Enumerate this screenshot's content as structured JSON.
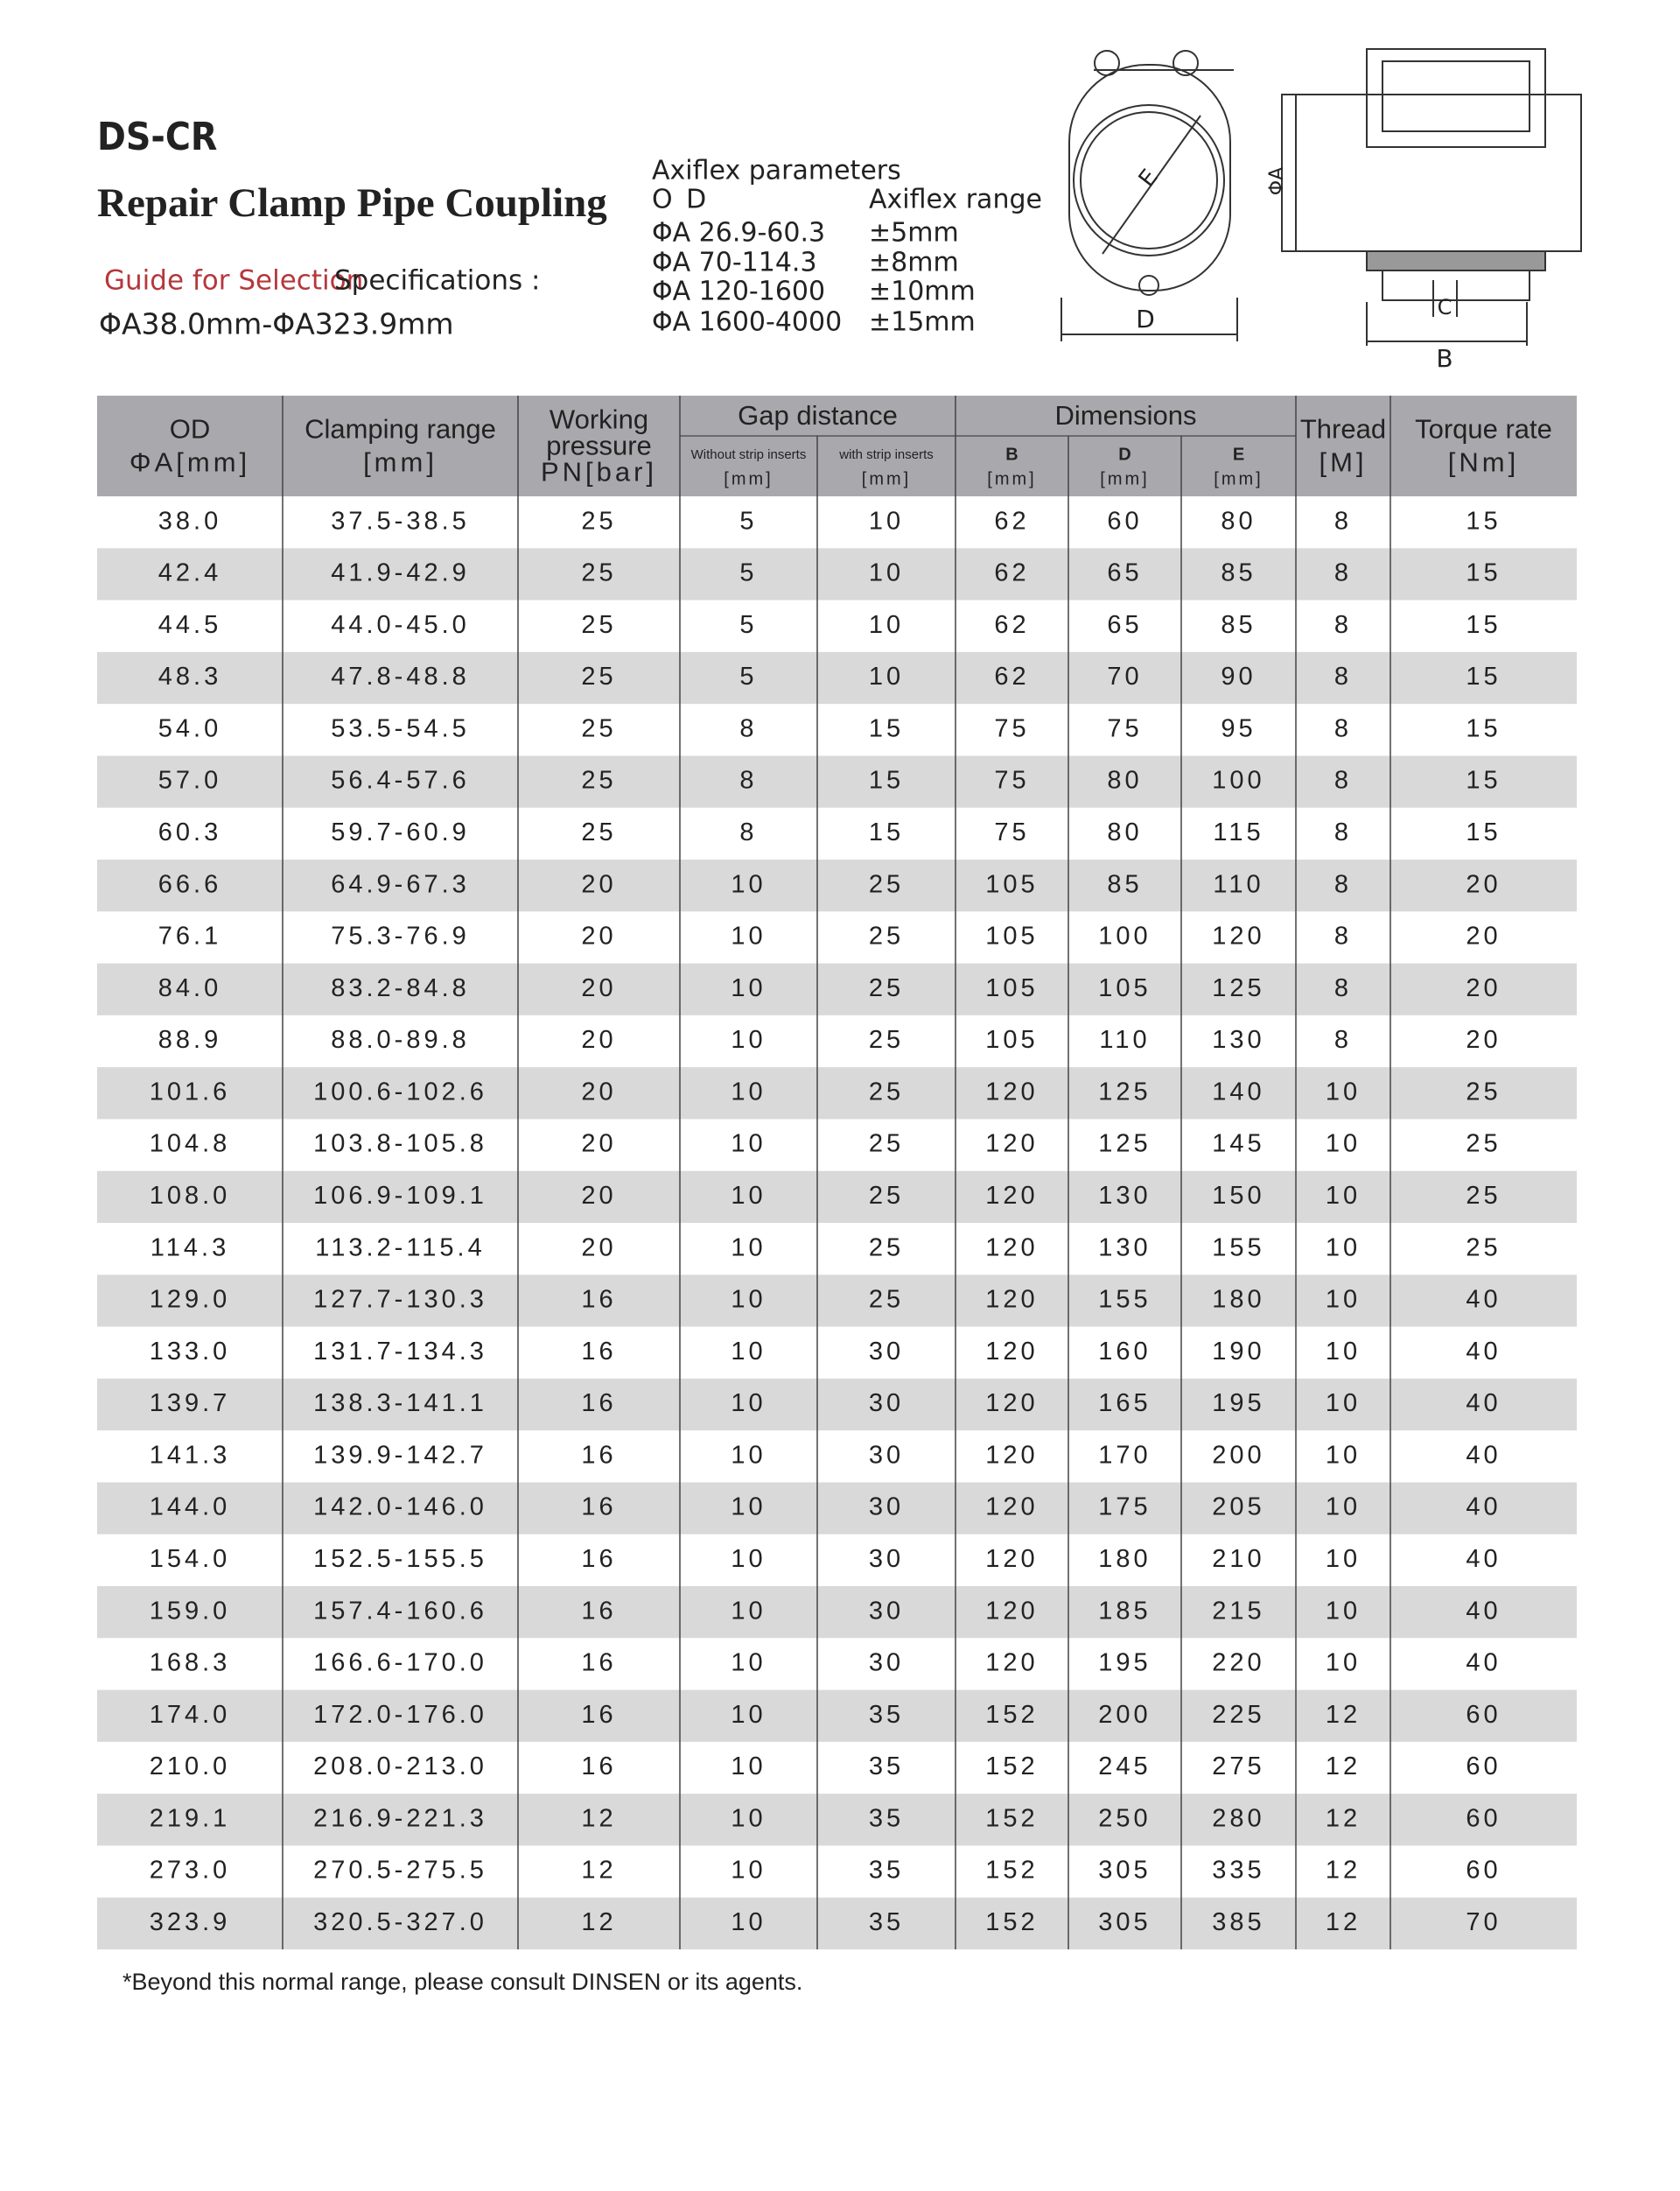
{
  "header": {
    "code": "DS-CR",
    "title": "Repair Clamp Pipe Coupling",
    "guide": "Guide for Selection",
    "specifications": "Specifications :",
    "range": "ΦA38.0mm-ΦA323.9mm"
  },
  "axiflex": {
    "title": "Axiflex parameters",
    "od_label": "O D",
    "range_label": "Axiflex range",
    "rows": [
      [
        "ΦA  26.9-60.3",
        "±5mm"
      ],
      [
        "ΦA  70-114.3",
        "±8mm"
      ],
      [
        "ΦA  120-1600",
        "±10mm"
      ],
      [
        "ΦA  1600-4000",
        "±15mm"
      ]
    ]
  },
  "diagram": {
    "e": "E",
    "d": "D",
    "phi_a": "ΦA",
    "c": "C",
    "b": "B"
  },
  "table": {
    "header": [
      [
        "OD",
        "ΦA[mm]"
      ],
      [
        "Clamping range",
        "[mm]"
      ],
      [
        "Working",
        "pressure",
        "PN[bar]"
      ],
      [
        "Without strip inserts",
        "[mm]"
      ],
      [
        "with strip inserts",
        "[mm]"
      ],
      [
        "B",
        "[mm]"
      ],
      [
        "D",
        "[mm]"
      ],
      [
        "E",
        "[mm]"
      ],
      [
        "Thread",
        "[M]"
      ],
      [
        "Torque rate",
        "[Nm]"
      ]
    ],
    "groups": [
      "Gap distance",
      "Dimensions"
    ],
    "rows": [
      [
        "38.0",
        "37.5-38.5",
        "25",
        "5",
        "10",
        "62",
        "60",
        "80",
        "8",
        "15"
      ],
      [
        "42.4",
        "41.9-42.9",
        "25",
        "5",
        "10",
        "62",
        "65",
        "85",
        "8",
        "15"
      ],
      [
        "44.5",
        "44.0-45.0",
        "25",
        "5",
        "10",
        "62",
        "65",
        "85",
        "8",
        "15"
      ],
      [
        "48.3",
        "47.8-48.8",
        "25",
        "5",
        "10",
        "62",
        "70",
        "90",
        "8",
        "15"
      ],
      [
        "54.0",
        "53.5-54.5",
        "25",
        "8",
        "15",
        "75",
        "75",
        "95",
        "8",
        "15"
      ],
      [
        "57.0",
        "56.4-57.6",
        "25",
        "8",
        "15",
        "75",
        "80",
        "100",
        "8",
        "15"
      ],
      [
        "60.3",
        "59.7-60.9",
        "25",
        "8",
        "15",
        "75",
        "80",
        "115",
        "8",
        "15"
      ],
      [
        "66.6",
        "64.9-67.3",
        "20",
        "10",
        "25",
        "105",
        "85",
        "110",
        "8",
        "20"
      ],
      [
        "76.1",
        "75.3-76.9",
        "20",
        "10",
        "25",
        "105",
        "100",
        "120",
        "8",
        "20"
      ],
      [
        "84.0",
        "83.2-84.8",
        "20",
        "10",
        "25",
        "105",
        "105",
        "125",
        "8",
        "20"
      ],
      [
        "88.9",
        "88.0-89.8",
        "20",
        "10",
        "25",
        "105",
        "110",
        "130",
        "8",
        "20"
      ],
      [
        "101.6",
        "100.6-102.6",
        "20",
        "10",
        "25",
        "120",
        "125",
        "140",
        "10",
        "25"
      ],
      [
        "104.8",
        "103.8-105.8",
        "20",
        "10",
        "25",
        "120",
        "125",
        "145",
        "10",
        "25"
      ],
      [
        "108.0",
        "106.9-109.1",
        "20",
        "10",
        "25",
        "120",
        "130",
        "150",
        "10",
        "25"
      ],
      [
        "114.3",
        "113.2-115.4",
        "20",
        "10",
        "25",
        "120",
        "130",
        "155",
        "10",
        "25"
      ],
      [
        "129.0",
        "127.7-130.3",
        "16",
        "10",
        "25",
        "120",
        "155",
        "180",
        "10",
        "40"
      ],
      [
        "133.0",
        "131.7-134.3",
        "16",
        "10",
        "30",
        "120",
        "160",
        "190",
        "10",
        "40"
      ],
      [
        "139.7",
        "138.3-141.1",
        "16",
        "10",
        "30",
        "120",
        "165",
        "195",
        "10",
        "40"
      ],
      [
        "141.3",
        "139.9-142.7",
        "16",
        "10",
        "30",
        "120",
        "170",
        "200",
        "10",
        "40"
      ],
      [
        "144.0",
        "142.0-146.0",
        "16",
        "10",
        "30",
        "120",
        "175",
        "205",
        "10",
        "40"
      ],
      [
        "154.0",
        "152.5-155.5",
        "16",
        "10",
        "30",
        "120",
        "180",
        "210",
        "10",
        "40"
      ],
      [
        "159.0",
        "157.4-160.6",
        "16",
        "10",
        "30",
        "120",
        "185",
        "215",
        "10",
        "40"
      ],
      [
        "168.3",
        "166.6-170.0",
        "16",
        "10",
        "30",
        "120",
        "195",
        "220",
        "10",
        "40"
      ],
      [
        "174.0",
        "172.0-176.0",
        "16",
        "10",
        "35",
        "152",
        "200",
        "225",
        "12",
        "60"
      ],
      [
        "210.0",
        "208.0-213.0",
        "16",
        "10",
        "35",
        "152",
        "245",
        "275",
        "12",
        "60"
      ],
      [
        "219.1",
        "216.9-221.3",
        "12",
        "10",
        "35",
        "152",
        "250",
        "280",
        "12",
        "60"
      ],
      [
        "273.0",
        "270.5-275.5",
        "12",
        "10",
        "35",
        "152",
        "305",
        "335",
        "12",
        "60"
      ],
      [
        "323.9",
        "320.5-327.0",
        "12",
        "10",
        "35",
        "152",
        "305",
        "385",
        "12",
        "70"
      ]
    ]
  },
  "footnote": "*Beyond this normal range, please consult DINSEN or its agents."
}
